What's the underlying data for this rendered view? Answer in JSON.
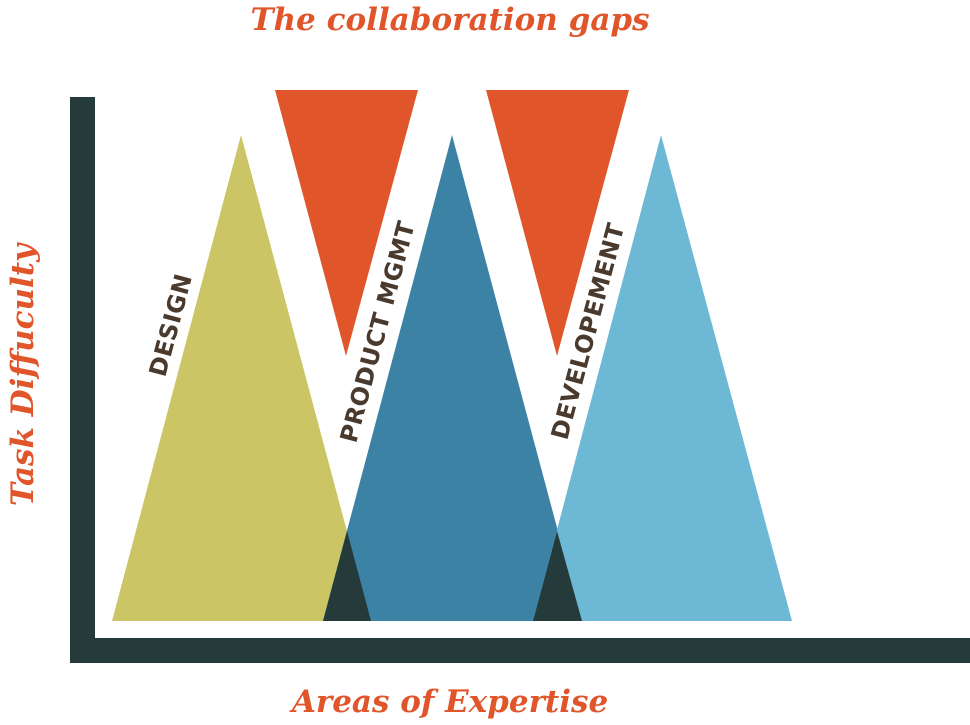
{
  "title": "The collaboration gaps",
  "axes": {
    "x_label": "Areas of Expertise",
    "y_label": "Task Diffuculty"
  },
  "areas": [
    {
      "label": "DESIGN",
      "color": "#CCC566"
    },
    {
      "label": "PRODUCT MGMT",
      "color": "#3B82A5"
    },
    {
      "label": "DEVELOPEMENT",
      "color": "#6DB8D4"
    }
  ],
  "colors": {
    "accent": "#E0552A",
    "axis": "#243A3B",
    "label": "#4A3A2E",
    "overlap": "#243A3B",
    "gap": "#E0552A",
    "background": "#FFFFFF"
  }
}
